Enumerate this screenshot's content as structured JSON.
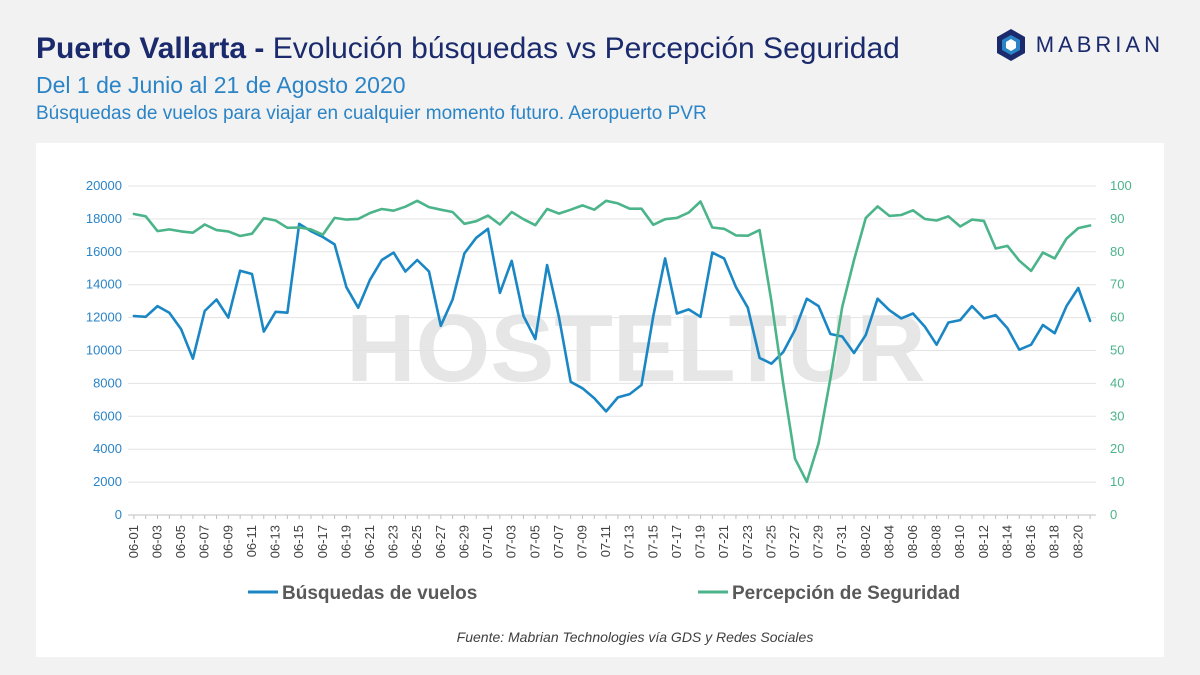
{
  "header": {
    "title_bold": "Puerto Vallarta -",
    "title_rest": " Evolución búsquedas vs Percepción Seguridad",
    "subtitle_1": "Del 1 de Junio al 21 de Agosto 2020",
    "subtitle_2": "Búsquedas de vuelos para viajar en cualquier momento futuro. Aeropuerto PVR"
  },
  "logo": {
    "text": "MABRIAN",
    "icon": "mabrian-logo-icon",
    "color": "#1a2a6c"
  },
  "watermark": "HOSTELTUR",
  "footer": {
    "source": "Fuente: Mabrian Technologies vía GDS y Redes Sociales"
  },
  "chart_data": {
    "type": "line",
    "x": [
      "06-01",
      "06-02",
      "06-03",
      "06-04",
      "06-05",
      "06-06",
      "06-07",
      "06-08",
      "06-09",
      "06-10",
      "06-11",
      "06-12",
      "06-13",
      "06-14",
      "06-15",
      "06-16",
      "06-17",
      "06-18",
      "06-19",
      "06-20",
      "06-21",
      "06-22",
      "06-23",
      "06-24",
      "06-25",
      "06-26",
      "06-27",
      "06-28",
      "06-29",
      "06-30",
      "07-01",
      "07-02",
      "07-03",
      "07-04",
      "07-05",
      "07-06",
      "07-07",
      "07-08",
      "07-09",
      "07-10",
      "07-11",
      "07-12",
      "07-13",
      "07-14",
      "07-15",
      "07-16",
      "07-17",
      "07-18",
      "07-19",
      "07-20",
      "07-21",
      "07-22",
      "07-23",
      "07-24",
      "07-25",
      "07-26",
      "07-27",
      "07-28",
      "07-29",
      "07-30",
      "07-31",
      "08-01",
      "08-02",
      "08-03",
      "08-04",
      "08-05",
      "08-06",
      "08-07",
      "08-08",
      "08-09",
      "08-10",
      "08-11",
      "08-12",
      "08-13",
      "08-14",
      "08-15",
      "08-16",
      "08-17",
      "08-18",
      "08-19",
      "08-20",
      "08-21"
    ],
    "x_tick_labels": [
      "06-01",
      "06-03",
      "06-05",
      "06-07",
      "06-09",
      "06-11",
      "06-13",
      "06-15",
      "06-17",
      "06-19",
      "06-21",
      "06-23",
      "06-25",
      "06-27",
      "06-29",
      "07-01",
      "07-03",
      "07-05",
      "07-07",
      "07-09",
      "07-11",
      "07-13",
      "07-15",
      "07-17",
      "07-19",
      "07-21",
      "07-23",
      "07-25",
      "07-27",
      "07-29",
      "07-31",
      "08-02",
      "08-04",
      "08-06",
      "08-08",
      "08-10",
      "08-12",
      "08-14",
      "08-16",
      "08-18",
      "08-20"
    ],
    "series": [
      {
        "name": "Búsquedas de vuelos",
        "axis": "left",
        "color": "#1a87c4",
        "values": [
          12100,
          12050,
          12700,
          12300,
          11300,
          9500,
          12400,
          13100,
          12000,
          14850,
          14650,
          11150,
          12350,
          12300,
          17700,
          17250,
          16900,
          16450,
          13850,
          12600,
          14300,
          15500,
          15950,
          14800,
          15500,
          14800,
          11500,
          13100,
          15900,
          16850,
          17400,
          13500,
          15450,
          12100,
          10700,
          15200,
          12050,
          8100,
          7700,
          7100,
          6300,
          7150,
          7350,
          7900,
          12100,
          15600,
          12250,
          12500,
          12050,
          15950,
          15600,
          13850,
          12600,
          9550,
          9200,
          9900,
          11250,
          13150,
          12700,
          11000,
          10850,
          9850,
          10950,
          13150,
          12450,
          11950,
          12250,
          11450,
          10350,
          11700,
          11850,
          12700,
          11950,
          12150,
          11350,
          10050,
          10350,
          11550,
          11050,
          12700,
          13800,
          11800
        ]
      },
      {
        "name": "Percepción de Seguridad",
        "axis": "right",
        "color": "#4cb48a",
        "values": [
          91.5,
          90.8,
          86.3,
          86.8,
          86.2,
          85.8,
          88.3,
          86.6,
          86.2,
          84.8,
          85.5,
          90.2,
          89.5,
          87.3,
          87.4,
          86.8,
          85.2,
          90.3,
          89.8,
          90.0,
          91.8,
          93.0,
          92.5,
          93.7,
          95.5,
          93.6,
          92.8,
          92.1,
          88.5,
          89.3,
          91.0,
          88.3,
          92.1,
          89.9,
          88.1,
          93.0,
          91.6,
          92.8,
          94.1,
          92.8,
          95.5,
          94.7,
          93.1,
          93.1,
          88.2,
          89.9,
          90.3,
          91.9,
          95.3,
          87.4,
          87.0,
          85.0,
          84.9,
          86.6,
          65.0,
          40.0,
          17.1,
          10.1,
          21.8,
          41.5,
          63.2,
          77.5,
          90.3,
          93.8,
          90.9,
          91.2,
          92.6,
          90.0,
          89.5,
          90.8,
          87.7,
          89.8,
          89.4,
          81.0,
          81.8,
          77.3,
          74.2,
          79.8,
          78.0,
          84.0,
          87.2,
          88.0
        ]
      }
    ],
    "y_left": {
      "ylim": [
        0,
        20000
      ],
      "ticks": [
        "0",
        "2000",
        "4000",
        "6000",
        "8000",
        "10000",
        "12000",
        "14000",
        "16000",
        "18000",
        "20000"
      ]
    },
    "y_right": {
      "ylim": [
        0,
        100
      ],
      "ticks": [
        "0",
        "10",
        "20",
        "30",
        "40",
        "50",
        "60",
        "70",
        "80",
        "90",
        "100"
      ]
    },
    "legend_placement": "bottom",
    "grid": true
  }
}
